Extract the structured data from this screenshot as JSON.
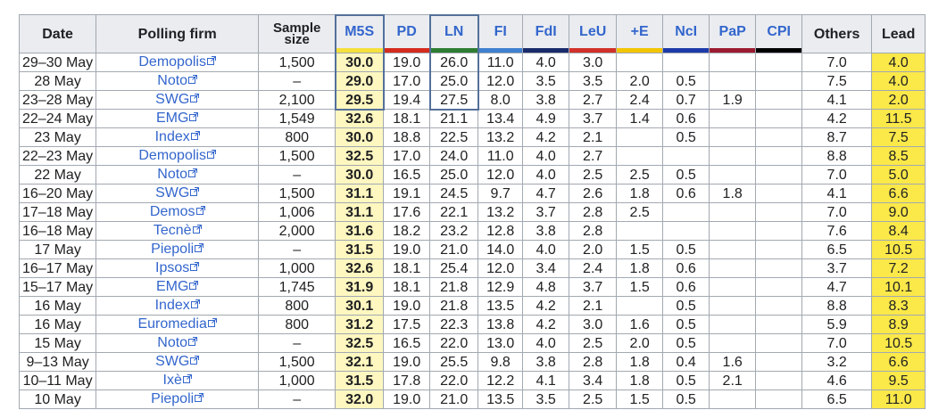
{
  "headers": {
    "date": "Date",
    "firm": "Polling firm",
    "sample_line1": "Sample",
    "sample_line2": "size",
    "parties": [
      "M5S",
      "PD",
      "LN",
      "FI",
      "FdI",
      "LeU",
      "+E",
      "NcI",
      "PaP",
      "CPI"
    ],
    "others": "Others",
    "lead": "Lead"
  },
  "party_colors": {
    "M5S": "#f5e03d",
    "PD": "#d52b1e",
    "LN": "#2e7d32",
    "FI": "#3f80d0",
    "FdI": "#1a2b6b",
    "LeU": "#d1312a",
    "+E": "#f2c500",
    "NcI": "#1e3aa8",
    "PaP": "#9b1b30",
    "CPI": "#000000"
  },
  "rows": [
    {
      "date": "29–30 May",
      "firm": "Demopolis",
      "sample": "1,500",
      "values": [
        "30.0",
        "19.0",
        "26.0",
        "11.0",
        "4.0",
        "3.0",
        "",
        "",
        "",
        ""
      ],
      "others": "7.0",
      "lead": "4.0"
    },
    {
      "date": "28 May",
      "firm": "Noto",
      "sample": "–",
      "values": [
        "29.0",
        "17.0",
        "25.0",
        "12.0",
        "3.5",
        "3.5",
        "2.0",
        "0.5",
        "",
        ""
      ],
      "others": "7.5",
      "lead": "4.0"
    },
    {
      "date": "23–28 May",
      "firm": "SWG",
      "sample": "2,100",
      "values": [
        "29.5",
        "19.4",
        "27.5",
        "8.0",
        "3.8",
        "2.7",
        "2.4",
        "0.7",
        "1.9",
        ""
      ],
      "others": "4.1",
      "lead": "2.0"
    },
    {
      "date": "22–24 May",
      "firm": "EMG",
      "sample": "1,549",
      "values": [
        "32.6",
        "18.1",
        "21.1",
        "13.4",
        "4.9",
        "3.7",
        "1.4",
        "0.6",
        "",
        ""
      ],
      "others": "4.2",
      "lead": "11.5"
    },
    {
      "date": "23 May",
      "firm": "Index",
      "sample": "800",
      "values": [
        "30.0",
        "18.8",
        "22.5",
        "13.2",
        "4.2",
        "2.1",
        "",
        "0.5",
        "",
        ""
      ],
      "others": "8.7",
      "lead": "7.5"
    },
    {
      "date": "22–23 May",
      "firm": "Demopolis",
      "sample": "1,500",
      "values": [
        "32.5",
        "17.0",
        "24.0",
        "11.0",
        "4.0",
        "2.7",
        "",
        "",
        "",
        ""
      ],
      "others": "8.8",
      "lead": "8.5"
    },
    {
      "date": "22 May",
      "firm": "Noto",
      "sample": "–",
      "values": [
        "30.0",
        "16.5",
        "25.0",
        "12.0",
        "4.0",
        "2.5",
        "2.5",
        "0.5",
        "",
        ""
      ],
      "others": "7.0",
      "lead": "5.0"
    },
    {
      "date": "16–20 May",
      "firm": "SWG",
      "sample": "1,500",
      "values": [
        "31.1",
        "19.1",
        "24.5",
        "9.7",
        "4.7",
        "2.6",
        "1.8",
        "0.6",
        "1.8",
        ""
      ],
      "others": "4.1",
      "lead": "6.6"
    },
    {
      "date": "17–18 May",
      "firm": "Demos",
      "sample": "1,006",
      "values": [
        "31.1",
        "17.6",
        "22.1",
        "13.2",
        "3.7",
        "2.8",
        "2.5",
        "",
        "",
        ""
      ],
      "others": "7.0",
      "lead": "9.0"
    },
    {
      "date": "16–18 May",
      "firm": "Tecnè",
      "sample": "2,000",
      "values": [
        "31.6",
        "18.2",
        "23.2",
        "12.8",
        "3.8",
        "2.8",
        "",
        "",
        "",
        ""
      ],
      "others": "7.6",
      "lead": "8.4"
    },
    {
      "date": "17 May",
      "firm": "Piepoli",
      "sample": "–",
      "values": [
        "31.5",
        "19.0",
        "21.0",
        "14.0",
        "4.0",
        "2.0",
        "1.5",
        "0.5",
        "",
        ""
      ],
      "others": "6.5",
      "lead": "10.5"
    },
    {
      "date": "16–17 May",
      "firm": "Ipsos",
      "sample": "1,000",
      "values": [
        "32.6",
        "18.1",
        "25.4",
        "12.0",
        "3.4",
        "2.4",
        "1.8",
        "0.6",
        "",
        ""
      ],
      "others": "3.7",
      "lead": "7.2"
    },
    {
      "date": "15–17 May",
      "firm": "EMG",
      "sample": "1,745",
      "values": [
        "31.9",
        "18.1",
        "21.8",
        "12.9",
        "4.8",
        "3.7",
        "1.5",
        "0.6",
        "",
        ""
      ],
      "others": "4.7",
      "lead": "10.1"
    },
    {
      "date": "16 May",
      "firm": "Index",
      "sample": "800",
      "values": [
        "30.1",
        "19.0",
        "21.8",
        "13.5",
        "4.2",
        "2.1",
        "",
        "0.5",
        "",
        ""
      ],
      "others": "8.8",
      "lead": "8.3"
    },
    {
      "date": "16 May",
      "firm": "Euromedia",
      "sample": "800",
      "values": [
        "31.2",
        "17.5",
        "22.3",
        "13.8",
        "4.2",
        "3.0",
        "1.6",
        "0.5",
        "",
        ""
      ],
      "others": "5.9",
      "lead": "8.9"
    },
    {
      "date": "15 May",
      "firm": "Noto",
      "sample": "–",
      "values": [
        "32.5",
        "16.5",
        "22.0",
        "13.0",
        "4.0",
        "2.5",
        "2.0",
        "0.5",
        "",
        ""
      ],
      "others": "7.0",
      "lead": "10.5"
    },
    {
      "date": "9–13 May",
      "firm": "SWG",
      "sample": "1,500",
      "values": [
        "32.1",
        "19.0",
        "25.5",
        "9.8",
        "3.8",
        "2.8",
        "1.8",
        "0.4",
        "1.6",
        ""
      ],
      "others": "3.2",
      "lead": "6.6"
    },
    {
      "date": "10–11 May",
      "firm": "Ixè",
      "sample": "1,000",
      "values": [
        "31.5",
        "17.8",
        "22.0",
        "12.2",
        "4.1",
        "3.4",
        "1.8",
        "0.5",
        "2.1",
        ""
      ],
      "others": "4.6",
      "lead": "9.5"
    },
    {
      "date": "10 May",
      "firm": "Piepoli",
      "sample": "–",
      "values": [
        "32.0",
        "19.0",
        "21.0",
        "13.5",
        "3.5",
        "2.5",
        "1.5",
        "0.5",
        "",
        ""
      ],
      "others": "6.5",
      "lead": "11.0"
    }
  ],
  "icons": {
    "external_link": "external-link-icon"
  },
  "colors": {
    "leader_cell": "#fff7c0",
    "lead_cell": "#fbe849",
    "header_bg": "#eaecf0",
    "link": "#3366cc",
    "highlight_frame": "#54709a"
  }
}
